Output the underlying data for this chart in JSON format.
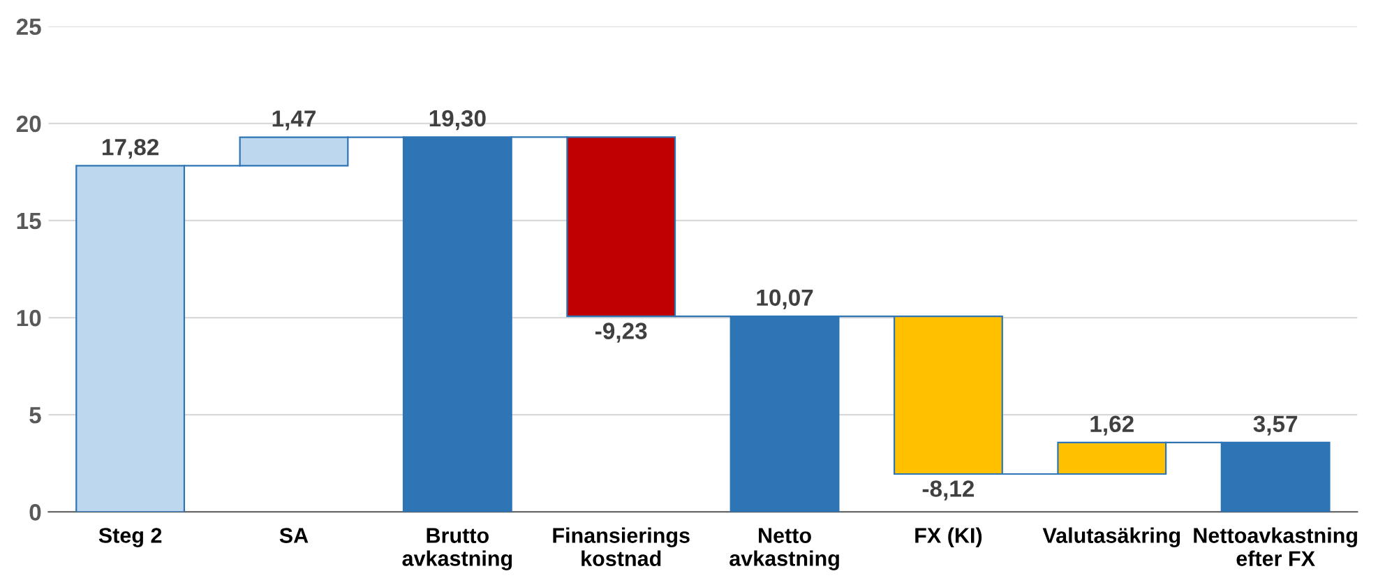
{
  "chart_data": {
    "type": "bar",
    "categories": [
      "Steg 2",
      "SA",
      "Brutto\navkastning",
      "Finansierings\nkostnad",
      "Netto\navkastning",
      "FX (KI)",
      "Valutasäkring",
      "Nettoavkastning\nefter FX"
    ],
    "values": [
      17.82,
      1.47,
      19.3,
      -9.23,
      10.07,
      -8.12,
      1.62,
      3.57
    ],
    "base": [
      0,
      17.82,
      0,
      19.3,
      0,
      10.07,
      1.95,
      0
    ],
    "colors": [
      "#bdd7ee",
      "#bdd7ee",
      "#2e75b6",
      "#c00000",
      "#2e75b6",
      "#ffc000",
      "#ffc000",
      "#2e75b6"
    ],
    "value_labels": [
      "17,82",
      "1,47",
      "19,30",
      "-9,23",
      "10,07",
      "-8,12",
      "1,62",
      "3,57"
    ],
    "ylim": [
      0,
      25
    ],
    "yticks": [
      0,
      5,
      10,
      15,
      20,
      25
    ],
    "grid": "y"
  }
}
